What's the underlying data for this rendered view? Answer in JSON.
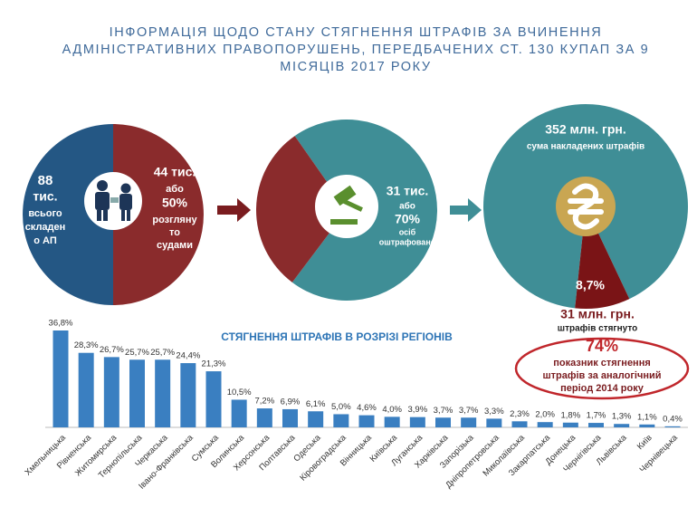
{
  "title": [
    "ІНФОРМАЦІЯ ЩОДО СТАНУ СТЯГНЕННЯ ШТРАФІВ ЗА ВЧИНЕННЯ",
    "АДМІНІСТРАТИВНИХ ПРАВОПОРУШЕНЬ, ПЕРЕДБАЧЕНИХ СТ. 130 КУПАП ЗА 9",
    "МІСЯЦІВ 2017 РОКУ"
  ],
  "chart_data": [
    {
      "type": "pie",
      "values": [
        50,
        50
      ],
      "colors": [
        "#8a2b2c",
        "#245784"
      ],
      "annotations": [
        "88",
        "тис.",
        "всього",
        "складен",
        "о АП",
        "44 тис.",
        "або",
        "50%",
        "розгляну",
        "то",
        "судами"
      ]
    },
    {
      "type": "pie",
      "values": [
        70,
        30
      ],
      "colors": [
        "#3f8e96",
        "#8a2b2c"
      ],
      "annotations": [
        "31 тис.",
        "або",
        "70%",
        "осіб",
        "оштрафовано"
      ]
    },
    {
      "type": "pie",
      "values": [
        91.3,
        8.7
      ],
      "colors": [
        "#3f8e96",
        "#7a1416"
      ],
      "annotations": [
        "352 млн. грн.",
        "сума накладених штрафів",
        "8,7%",
        "31 млн. грн.",
        "штрафів стягнуто"
      ]
    },
    {
      "type": "bar",
      "title": "СТЯГНЕННЯ ШТРАФІВ В РОЗРІЗІ РЕГІОНІВ",
      "color": "#3a7fc1",
      "categories": [
        "Хмельницька",
        "Рівненська",
        "Житомирська",
        "Тернопільська",
        "Черкаська",
        "Івано-Франківська",
        "Сумська",
        "Волинська",
        "Херсонська",
        "Полтавська",
        "Одеська",
        "Кіровоградська",
        "Вінницька",
        "Київська",
        "Луганська",
        "Харківська",
        "Запорізька",
        "Дніпропетровська",
        "Миколаївська",
        "Закарпатська",
        "Донецька",
        "Чернігівська",
        "Львівська",
        "Київ",
        "Чернівецька"
      ],
      "values": [
        36.8,
        28.3,
        26.7,
        25.7,
        25.7,
        24.4,
        21.3,
        10.5,
        7.2,
        6.9,
        6.1,
        5.0,
        4.6,
        4.0,
        3.9,
        3.7,
        3.7,
        3.3,
        2.3,
        2.0,
        1.8,
        1.7,
        1.3,
        1.1,
        0.4
      ],
      "value_labels": [
        "36,8%",
        "28,3%",
        "26,7%",
        "25,7%",
        "25,7%",
        "24,4%",
        "21,3%",
        "10,5%",
        "7,2%",
        "6,9%",
        "6,1%",
        "5,0%",
        "4,6%",
        "4,0%",
        "3,9%",
        "3,7%",
        "3,7%",
        "3,3%",
        "2,3%",
        "2,0%",
        "1,8%",
        "1,7%",
        "1,3%",
        "1,1%",
        "0,4%"
      ]
    }
  ],
  "highlight": {
    "value": "74%",
    "lines": [
      "показник стягнення",
      "штрафів за аналогічний",
      "період 2014 року"
    ]
  }
}
